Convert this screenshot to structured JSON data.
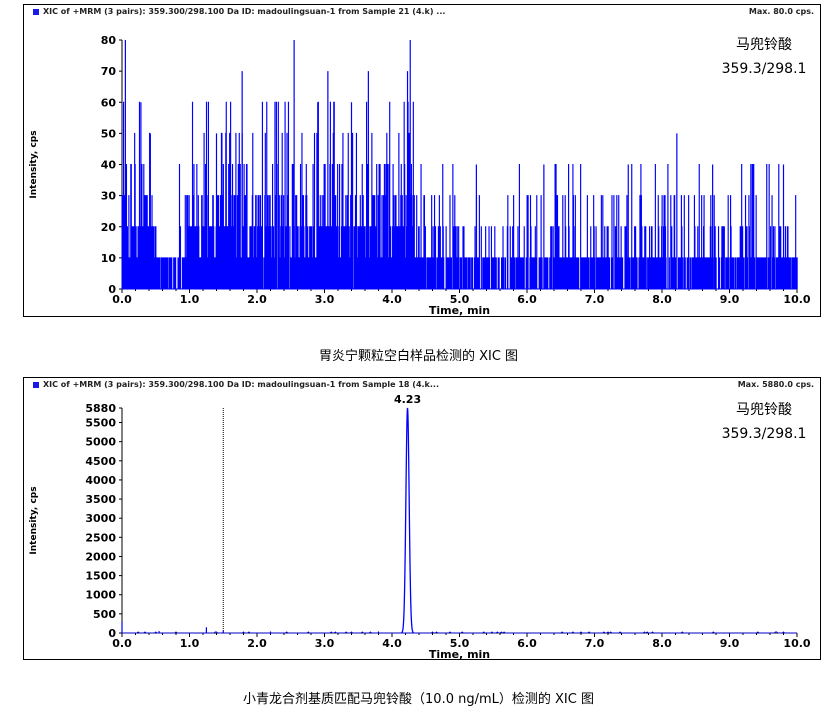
{
  "chart_data": [
    {
      "type": "line",
      "header": "XIC of +MRM (3 pairs): 359.300/298.100 Da ID: madoulingsuan-1 from Sample 21 (4.k) ...",
      "max_label": "Max. 80.0 cps.",
      "xlabel": "Time, min",
      "ylabel": "Intensity, cps",
      "xlim": [
        0,
        10
      ],
      "ylim": [
        0,
        80
      ],
      "x_ticks": [
        "0.0",
        "1.0",
        "2.0",
        "3.0",
        "4.0",
        "5.0",
        "6.0",
        "7.0",
        "8.0",
        "9.0",
        "10.0"
      ],
      "y_ticks": [
        "0",
        "10",
        "20",
        "30",
        "40",
        "50",
        "60",
        "70",
        "80"
      ],
      "annotation_compound": "马兜铃酸",
      "annotation_transition": "359.3/298.1",
      "caption": "胃炎宁颗粒空白样品检测的 XIC 图",
      "series": [
        {
          "color": "#0000ff",
          "noise_levels": [
            0,
            10,
            20,
            30,
            40,
            50,
            60,
            70,
            80
          ],
          "spikes": [
            {
              "x": 0.05,
              "y": 80
            },
            {
              "x": 0.28,
              "y": 60
            },
            {
              "x": 1.78,
              "y": 70
            },
            {
              "x": 2.55,
              "y": 80
            },
            {
              "x": 3.05,
              "y": 70
            },
            {
              "x": 3.65,
              "y": 70
            },
            {
              "x": 4.27,
              "y": 80
            },
            {
              "x": 4.23,
              "y": 70
            },
            {
              "x": 8.22,
              "y": 50
            },
            {
              "x": 9.8,
              "y": 40
            },
            {
              "x": 0.42,
              "y": 50
            },
            {
              "x": 1.4,
              "y": 50
            },
            {
              "x": 2.9,
              "y": 60
            },
            {
              "x": 3.4,
              "y": 60
            },
            {
              "x": 5.25,
              "y": 40
            },
            {
              "x": 6.25,
              "y": 40
            },
            {
              "x": 7.5,
              "y": 40
            },
            {
              "x": 8.75,
              "y": 40
            }
          ]
        }
      ]
    },
    {
      "type": "line",
      "header": "XIC of +MRM (3 pairs): 359.300/298.100 Da ID: madoulingsuan-1 from Sample 18 (4.k...",
      "max_label": "Max. 5880.0 cps.",
      "xlabel": "Time, min",
      "ylabel": "Intensity, cps",
      "xlim": [
        0,
        10
      ],
      "ylim": [
        0,
        5880
      ],
      "x_ticks": [
        "0.0",
        "1.0",
        "2.0",
        "3.0",
        "4.0",
        "5.0",
        "6.0",
        "7.0",
        "8.0",
        "9.0",
        "10.0"
      ],
      "y_ticks": [
        "0",
        "500",
        "1000",
        "1500",
        "2000",
        "2500",
        "3000",
        "3500",
        "4000",
        "4500",
        "5000",
        "5500",
        "5880"
      ],
      "peak_label": "4.23",
      "annotation_compound": "马兜铃酸",
      "annotation_transition": "359.3/298.1",
      "caption": "小青龙合剂基质匹配马兜铃酸（10.0 ng/mL）检测的 XIC 图",
      "series": [
        {
          "color": "#0000ff",
          "peak_x": 4.23,
          "peak_y": 5880,
          "peak_width_min": 0.06,
          "baseline_spikes": [
            {
              "x": 0.0,
              "y": 300
            },
            {
              "x": 1.25,
              "y": 150
            },
            {
              "x": 1.5,
              "y": 60
            },
            {
              "x": 3.8,
              "y": 40
            },
            {
              "x": 0.55,
              "y": 50
            },
            {
              "x": 2.2,
              "y": 40
            }
          ],
          "marker_x": 1.5
        }
      ]
    }
  ]
}
